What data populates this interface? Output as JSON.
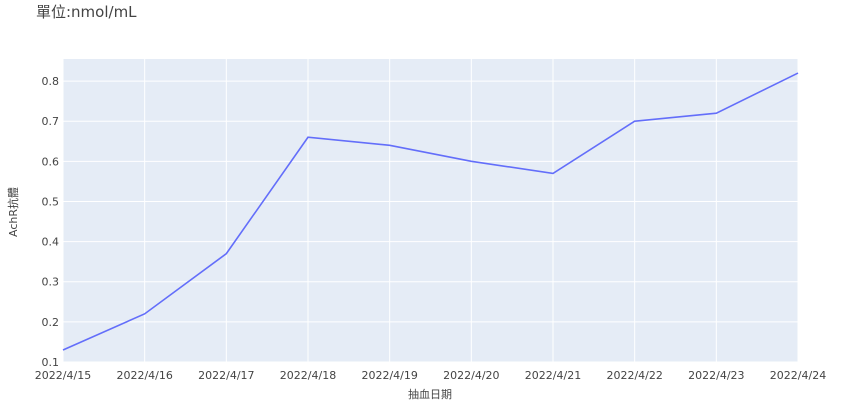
{
  "chart_data": {
    "type": "line",
    "title": "單位:nmol/mL",
    "xlabel": "抽血日期",
    "ylabel": "AchR抗體",
    "x": [
      "2022/4/15",
      "2022/4/16",
      "2022/4/17",
      "2022/4/18",
      "2022/4/19",
      "2022/4/20",
      "2022/4/21",
      "2022/4/22",
      "2022/4/23",
      "2022/4/24"
    ],
    "series": [
      {
        "values": [
          0.13,
          0.22,
          0.37,
          0.66,
          0.64,
          0.6,
          0.57,
          0.7,
          0.72,
          0.82
        ],
        "color": "#636efa"
      }
    ],
    "yticks": [
      0.1,
      0.2,
      0.3,
      0.4,
      0.5,
      0.6,
      0.7,
      0.8
    ],
    "ylim": [
      0.1,
      0.855
    ],
    "grid": true,
    "plot_background": "#e5ecf6",
    "grid_color": "#ffffff"
  }
}
